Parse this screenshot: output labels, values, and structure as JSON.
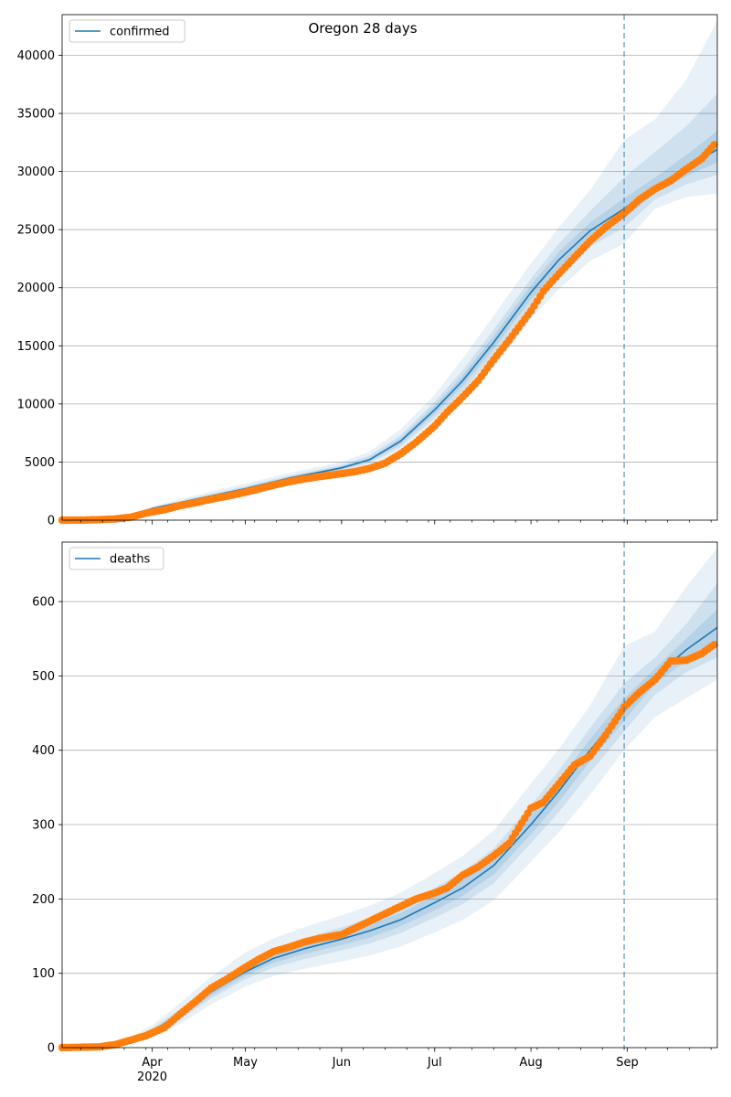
{
  "figure_title": "Oregon 28 days",
  "colors": {
    "model": "#1f77b4",
    "observed": "#ff7f0e",
    "band": "#1f77b4",
    "forecast_line": "#1f77b4",
    "grid": "#b0b0b0"
  },
  "x_axis": {
    "start": "2020-03-03",
    "end": "2020-09-30",
    "forecast_date": "2020-08-31",
    "month_ticks": [
      {
        "date": "2020-04-01",
        "label": "Apr",
        "sublabel": "2020"
      },
      {
        "date": "2020-05-01",
        "label": "May",
        "sublabel": ""
      },
      {
        "date": "2020-06-01",
        "label": "Jun",
        "sublabel": ""
      },
      {
        "date": "2020-07-01",
        "label": "Jul",
        "sublabel": ""
      },
      {
        "date": "2020-08-01",
        "label": "Aug",
        "sublabel": ""
      },
      {
        "date": "2020-09-01",
        "label": "Sep",
        "sublabel": ""
      }
    ]
  },
  "chart_data": [
    {
      "type": "line",
      "panel": "top",
      "legend": "confirmed",
      "legend_position": "top-left",
      "grid": "horizontal",
      "ylim": [
        0,
        43500
      ],
      "yticks": [
        0,
        5000,
        10000,
        15000,
        20000,
        25000,
        30000,
        35000,
        40000
      ],
      "series": [
        {
          "name": "confirmed",
          "kind": "model",
          "x": [
            "2020-03-03",
            "2020-03-17",
            "2020-03-24",
            "2020-04-01",
            "2020-04-15",
            "2020-05-01",
            "2020-05-15",
            "2020-06-01",
            "2020-06-10",
            "2020-06-20",
            "2020-07-01",
            "2020-07-10",
            "2020-07-20",
            "2020-08-01",
            "2020-08-10",
            "2020-08-20",
            "2020-08-31",
            "2020-09-10",
            "2020-09-20",
            "2020-09-30"
          ],
          "y": [
            0,
            50,
            250,
            1000,
            1800,
            2700,
            3600,
            4500,
            5200,
            6800,
            9500,
            12000,
            15300,
            19600,
            22400,
            24900,
            26800,
            28700,
            30300,
            31900
          ],
          "bands": [
            {
              "level": "outer",
              "lower": [
                0,
                40,
                200,
                850,
                1500,
                2300,
                3200,
                4000,
                4600,
                5900,
                8200,
                10400,
                13200,
                17300,
                19900,
                22300,
                23800,
                26800,
                27800,
                28100
              ],
              "upper": [
                0,
                60,
                300,
                1200,
                2150,
                3150,
                4050,
                5000,
                5900,
                7800,
                10800,
                13900,
                17600,
                22100,
                25200,
                28400,
                32700,
                34500,
                37900,
                43000
              ]
            },
            {
              "level": "middle",
              "lower": [
                0,
                45,
                225,
                920,
                1650,
                2500,
                3400,
                4250,
                4900,
                6300,
                8800,
                11100,
                14200,
                18400,
                21000,
                23500,
                25200,
                27600,
                28900,
                29700
              ],
              "upper": [
                0,
                55,
                275,
                1100,
                1980,
                2920,
                3830,
                4750,
                5550,
                7300,
                10200,
                12900,
                16400,
                20800,
                23800,
                26600,
                29500,
                31700,
                33900,
                36700
              ]
            },
            {
              "level": "inner",
              "lower": [
                0,
                48,
                240,
                960,
                1730,
                2600,
                3500,
                4380,
                5050,
                6550,
                9150,
                11550,
                14750,
                19000,
                21700,
                24200,
                26000,
                28150,
                29600,
                30800
              ],
              "upper": [
                0,
                52,
                262,
                1050,
                1890,
                2820,
                3720,
                4630,
                5370,
                7050,
                9850,
                12450,
                15850,
                20200,
                23100,
                25600,
                27700,
                29500,
                31400,
                33500
              ]
            }
          ]
        },
        {
          "name": "observed",
          "kind": "observed",
          "x": [
            "2020-03-03",
            "2020-03-10",
            "2020-03-15",
            "2020-03-20",
            "2020-03-25",
            "2020-03-30",
            "2020-04-05",
            "2020-04-10",
            "2020-04-15",
            "2020-04-20",
            "2020-04-25",
            "2020-05-01",
            "2020-05-05",
            "2020-05-10",
            "2020-05-15",
            "2020-05-20",
            "2020-05-25",
            "2020-06-01",
            "2020-06-05",
            "2020-06-10",
            "2020-06-15",
            "2020-06-20",
            "2020-06-25",
            "2020-07-01",
            "2020-07-05",
            "2020-07-10",
            "2020-07-15",
            "2020-07-20",
            "2020-07-25",
            "2020-08-01",
            "2020-08-05",
            "2020-08-10",
            "2020-08-15",
            "2020-08-20",
            "2020-08-25",
            "2020-08-31",
            "2020-09-05",
            "2020-09-10",
            "2020-09-15",
            "2020-09-20",
            "2020-09-25",
            "2020-09-29"
          ],
          "y": [
            0,
            10,
            40,
            100,
            250,
            600,
            900,
            1250,
            1500,
            1800,
            2050,
            2400,
            2650,
            3000,
            3300,
            3550,
            3750,
            4000,
            4150,
            4450,
            4900,
            5700,
            6700,
            8100,
            9300,
            10600,
            12000,
            13800,
            15500,
            18000,
            19700,
            21200,
            22600,
            24000,
            25200,
            26400,
            27600,
            28500,
            29200,
            30200,
            31100,
            32300
          ]
        }
      ]
    },
    {
      "type": "line",
      "panel": "bottom",
      "legend": "deaths",
      "legend_position": "top-left",
      "grid": "horizontal",
      "ylim": [
        0,
        680
      ],
      "yticks": [
        0,
        100,
        200,
        300,
        400,
        500,
        600
      ],
      "series": [
        {
          "name": "deaths",
          "kind": "model",
          "x": [
            "2020-03-03",
            "2020-03-15",
            "2020-03-25",
            "2020-04-01",
            "2020-04-10",
            "2020-04-20",
            "2020-05-01",
            "2020-05-10",
            "2020-05-20",
            "2020-06-01",
            "2020-06-10",
            "2020-06-20",
            "2020-07-01",
            "2020-07-10",
            "2020-07-20",
            "2020-08-01",
            "2020-08-10",
            "2020-08-20",
            "2020-08-31",
            "2020-09-10",
            "2020-09-20",
            "2020-09-30"
          ],
          "y": [
            0,
            3,
            10,
            22,
            45,
            75,
            102,
            120,
            133,
            146,
            157,
            172,
            195,
            215,
            245,
            300,
            345,
            400,
            455,
            500,
            535,
            565
          ],
          "bands": [
            {
              "level": "outer",
              "lower": [
                0,
                2,
                6,
                15,
                32,
                58,
                82,
                96,
                106,
                116,
                124,
                136,
                155,
                172,
                198,
                250,
                290,
                340,
                400,
                445,
                470,
                495
              ],
              "upper": [
                0,
                4,
                14,
                30,
                60,
                95,
                128,
                147,
                162,
                178,
                191,
                208,
                235,
                258,
                292,
                355,
                402,
                460,
                540,
                560,
                620,
                672
              ]
            },
            {
              "level": "middle",
              "lower": [
                0,
                2,
                8,
                18,
                38,
                66,
                92,
                108,
                119,
                131,
                140,
                154,
                175,
                193,
                221,
                275,
                317,
                370,
                425,
                475,
                505,
                525
              ],
              "upper": [
                0,
                4,
                12,
                26,
                52,
                85,
                112,
                132,
                147,
                162,
                174,
                190,
                215,
                237,
                268,
                326,
                373,
                430,
                490,
                525,
                570,
                625
              ]
            },
            {
              "level": "inner",
              "lower": [
                0,
                3,
                9,
                20,
                41,
                70,
                97,
                114,
                126,
                138,
                148,
                163,
                185,
                204,
                233,
                287,
                331,
                385,
                440,
                490,
                520,
                545
              ],
              "upper": [
                0,
                3,
                11,
                24,
                49,
                80,
                107,
                126,
                140,
                154,
                166,
                181,
                205,
                226,
                257,
                313,
                359,
                415,
                470,
                510,
                550,
                590
              ]
            }
          ]
        },
        {
          "name": "observed",
          "kind": "observed",
          "x": [
            "2020-03-03",
            "2020-03-15",
            "2020-03-20",
            "2020-03-25",
            "2020-03-30",
            "2020-04-05",
            "2020-04-10",
            "2020-04-15",
            "2020-04-20",
            "2020-04-25",
            "2020-05-01",
            "2020-05-05",
            "2020-05-10",
            "2020-05-15",
            "2020-05-20",
            "2020-05-25",
            "2020-06-01",
            "2020-06-05",
            "2020-06-10",
            "2020-06-15",
            "2020-06-20",
            "2020-06-25",
            "2020-07-01",
            "2020-07-05",
            "2020-07-10",
            "2020-07-15",
            "2020-07-20",
            "2020-07-25",
            "2020-08-01",
            "2020-08-05",
            "2020-08-10",
            "2020-08-15",
            "2020-08-20",
            "2020-08-25",
            "2020-08-31",
            "2020-09-05",
            "2020-09-10",
            "2020-09-15",
            "2020-09-20",
            "2020-09-25",
            "2020-09-29"
          ],
          "y": [
            0,
            1,
            4,
            10,
            16,
            27,
            45,
            62,
            80,
            92,
            108,
            118,
            129,
            135,
            142,
            147,
            152,
            160,
            170,
            180,
            190,
            200,
            208,
            215,
            232,
            243,
            258,
            275,
            322,
            330,
            355,
            380,
            392,
            420,
            458,
            478,
            495,
            520,
            521,
            530,
            542
          ]
        }
      ]
    }
  ]
}
